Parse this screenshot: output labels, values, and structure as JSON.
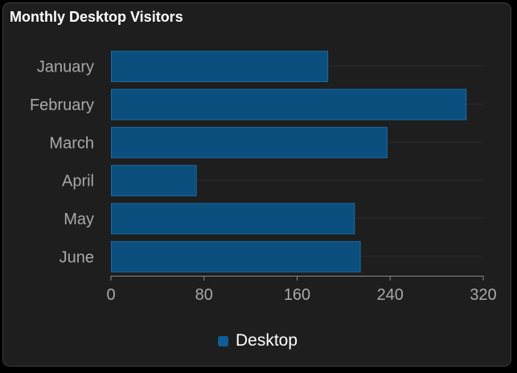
{
  "chart_data": {
    "type": "bar",
    "orientation": "horizontal",
    "title": "Monthly Desktop Visitors",
    "categories": [
      "January",
      "February",
      "March",
      "April",
      "May",
      "June"
    ],
    "series": [
      {
        "name": "Desktop",
        "values": [
          186,
          305,
          237,
          73,
          209,
          214
        ]
      }
    ],
    "xlim": [
      0,
      320
    ],
    "xticks": [
      0,
      80,
      160,
      240,
      320
    ],
    "xlabel": "",
    "ylabel": "",
    "grid": true,
    "legend": "bottom-center"
  },
  "colors": {
    "bar_fill": "#0b4f7e",
    "bar_stroke": "#1a6aa3",
    "legend_swatch": "#0e5d95",
    "grid": "#2c2c2c",
    "axis": "#8a8a8a"
  }
}
